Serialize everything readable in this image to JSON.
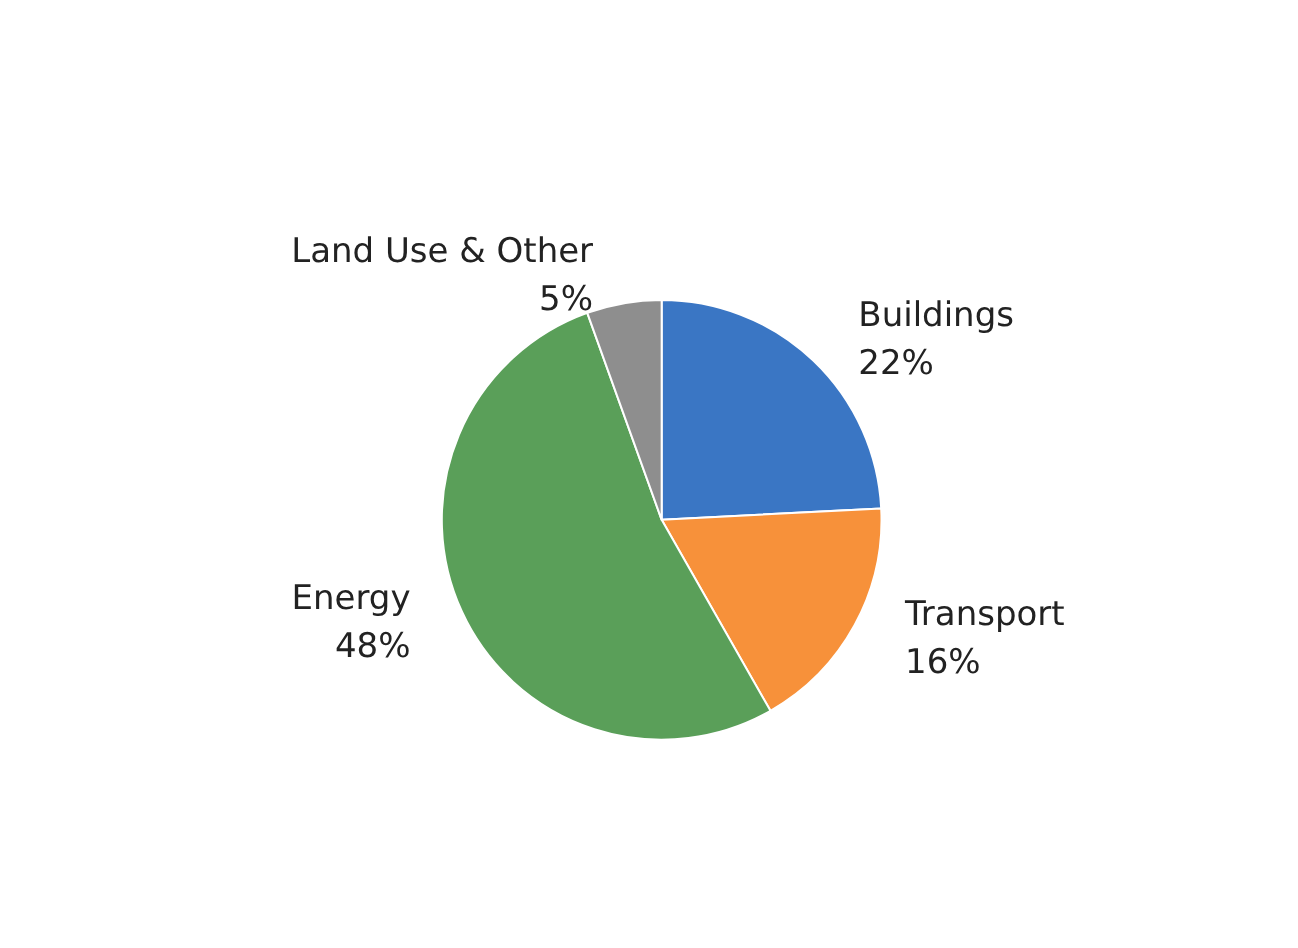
{
  "chart_data": {
    "type": "pie",
    "categories": [
      "Buildings",
      "Transport",
      "Energy",
      "Land Use & Other"
    ],
    "values": [
      22,
      16,
      48,
      5
    ],
    "colors": [
      "#3a76c4",
      "#f7913a",
      "#5a9f59",
      "#8e8e8e"
    ],
    "value_labels": [
      "22%",
      "16%",
      "48%",
      "5%"
    ],
    "legend": false
  }
}
